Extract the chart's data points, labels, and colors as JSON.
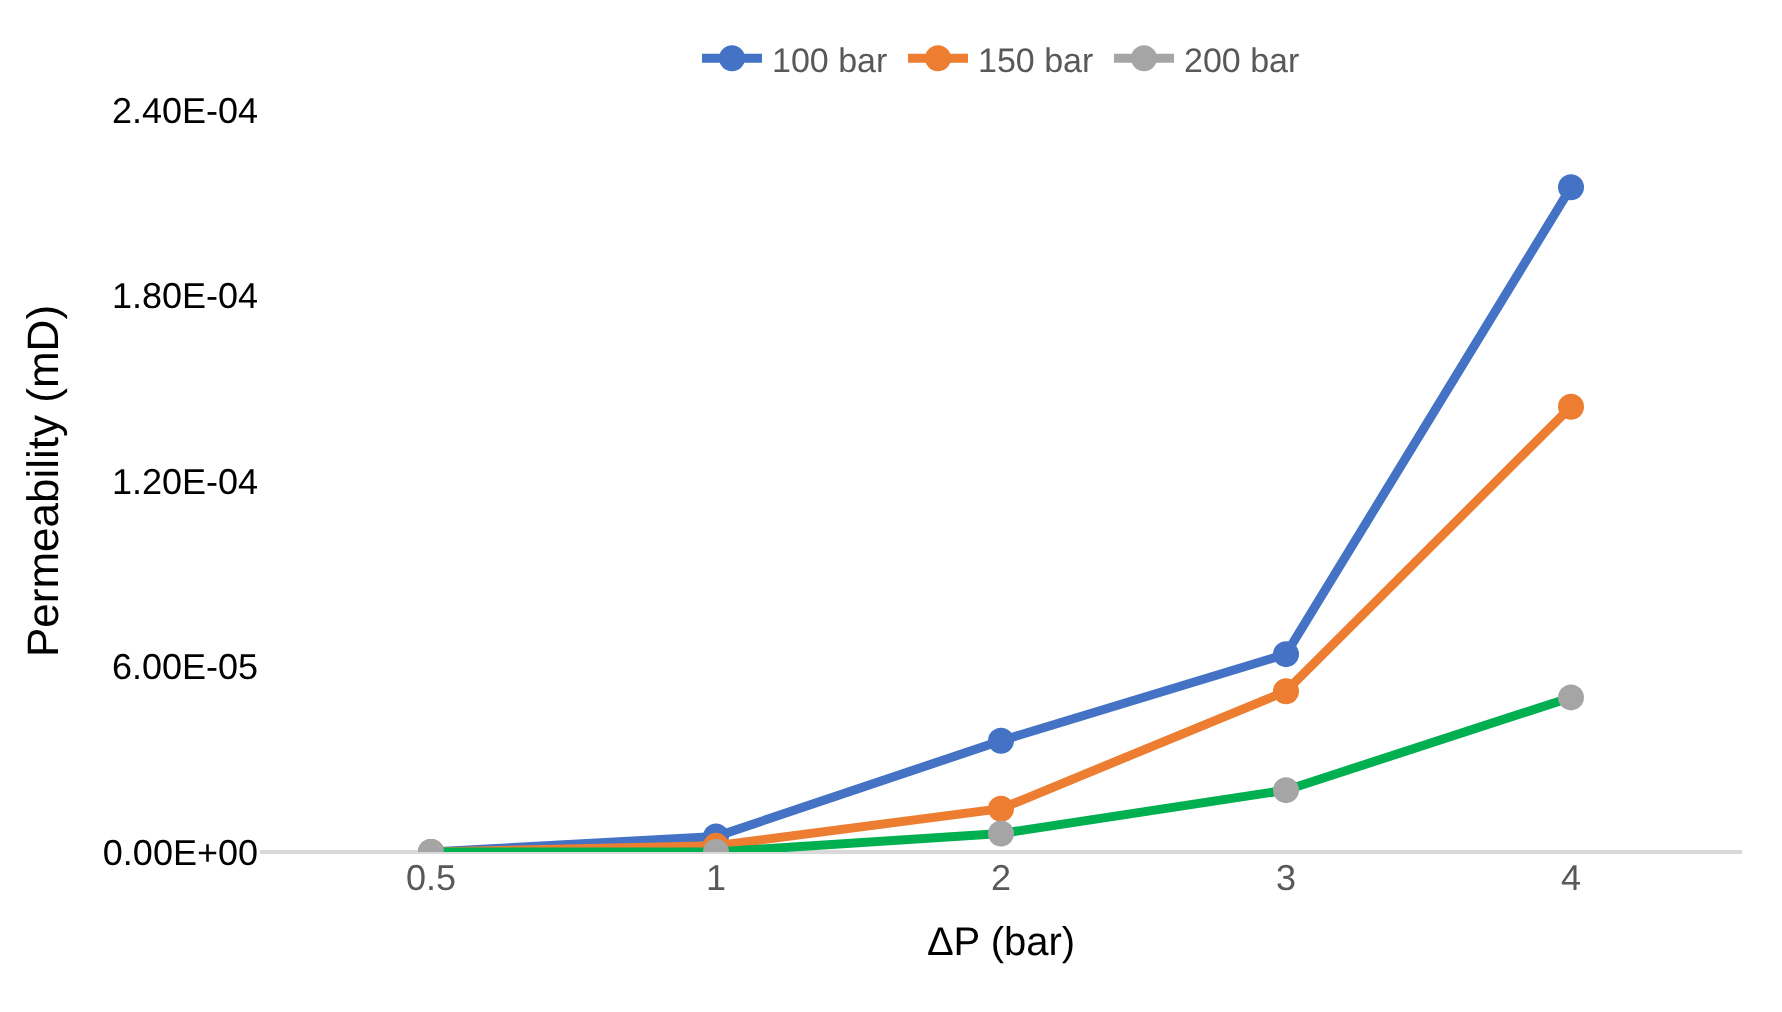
{
  "chart_data": {
    "type": "line",
    "xlabel": "ΔP (bar)",
    "ylabel": "Permeability (mD)",
    "categories": [
      "0.5",
      "1",
      "2",
      "3",
      "4"
    ],
    "series": [
      {
        "name": "100 bar",
        "color": "#4472c4",
        "values": [
          0,
          5e-06,
          3.6e-05,
          6.4e-05,
          0.000215
        ]
      },
      {
        "name": "150 bar",
        "color": "#ed7d31",
        "values": [
          0,
          2e-06,
          1.4e-05,
          5.2e-05,
          0.000144
        ]
      },
      {
        "name": "200 bar",
        "color": "#00b050",
        "colors": [
          "#a5a5a5",
          "#a5a5a5",
          "#a5a5a5",
          "#a5a5a5",
          "#a5a5a5"
        ],
        "values": [
          0,
          0,
          6e-06,
          2e-05,
          5e-05
        ]
      }
    ],
    "ylim": [
      0,
      0.00024
    ],
    "yticks": [
      {
        "value": 0,
        "label": "0.00E+00"
      },
      {
        "value": 6e-05,
        "label": "6.00E-05"
      },
      {
        "value": 0.00012,
        "label": "1.20E-04"
      },
      {
        "value": 0.00018,
        "label": "1.80E-04"
      },
      {
        "value": 0.00024,
        "label": "2.40E-04"
      }
    ],
    "grid": false,
    "legend": "top",
    "marker": "circle",
    "line_style": "solid"
  }
}
